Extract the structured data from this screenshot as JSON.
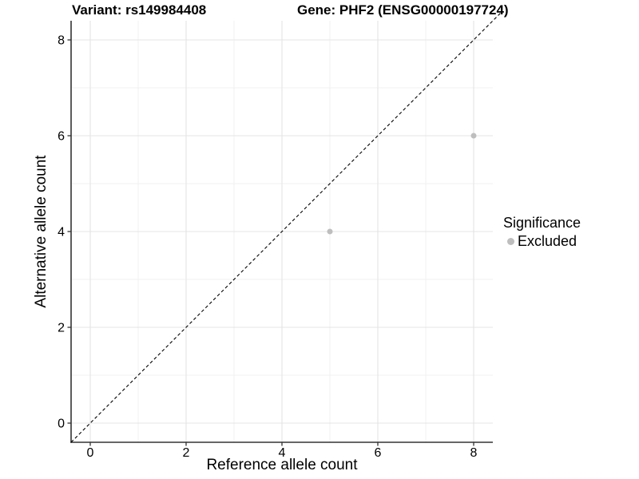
{
  "chart_data": {
    "type": "scatter",
    "titles": [
      "Variant: rs149984408",
      "Gene: PHF2 (ENSG00000197724)"
    ],
    "xlabel": "Reference allele count",
    "ylabel": "Alternative allele count",
    "xlim": [
      -0.4,
      8.4
    ],
    "ylim": [
      -0.4,
      8.4
    ],
    "x_major_ticks": [
      0,
      2,
      4,
      6,
      8
    ],
    "y_major_ticks": [
      0,
      2,
      4,
      6,
      8
    ],
    "x_minor_gridlines": [
      1,
      3,
      5,
      7
    ],
    "y_minor_gridlines": [
      1,
      3,
      5,
      7
    ],
    "grid": "major-and-minor",
    "legend_position": "right",
    "reference_line": {
      "kind": "y=x",
      "slope": 1,
      "intercept": 0,
      "style": "dashed",
      "color": "#000000"
    },
    "series": [
      {
        "name": "Excluded",
        "marker": "circle",
        "color": "#bebebe",
        "points": [
          {
            "x": 5,
            "y": 4
          },
          {
            "x": 8,
            "y": 6
          }
        ]
      }
    ],
    "legend": {
      "title": "Significance",
      "items": [
        {
          "label": "Excluded",
          "color": "#bebebe"
        }
      ]
    }
  },
  "colors": {
    "background": "#ffffff",
    "grid_major": "#e4e4e4",
    "grid_minor": "#f0f0f0",
    "axis_line": "#333333",
    "tick_mark": "#333333",
    "text": "#000000",
    "point": "#bebebe",
    "reference_line": "#000000"
  }
}
